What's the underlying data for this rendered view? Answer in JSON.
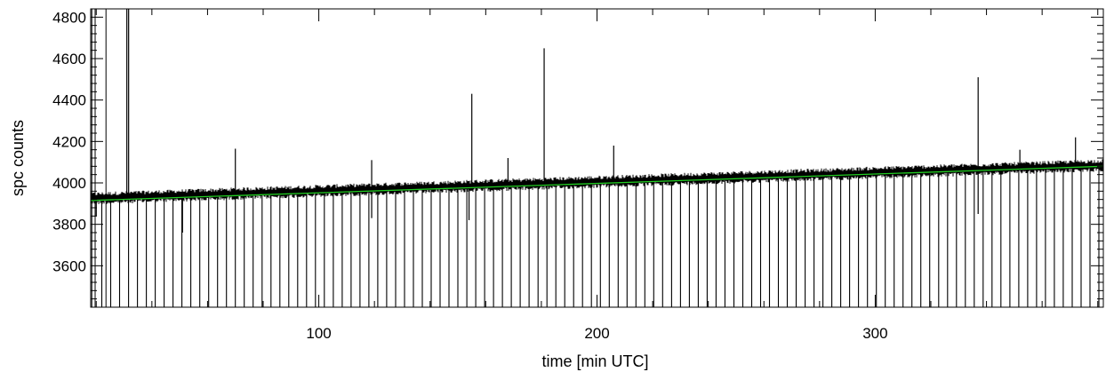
{
  "chart_data": {
    "type": "line",
    "title": "",
    "xlabel": "time [min UTC]",
    "ylabel": "spc counts",
    "xlim": [
      18,
      382
    ],
    "ylim": [
      3400,
      4840
    ],
    "xticks": [
      100,
      200,
      300
    ],
    "xtick_labels": [
      "100",
      "200",
      "300"
    ],
    "yticks": [
      3600,
      3800,
      4000,
      4200,
      4400,
      4600,
      4800
    ],
    "ytick_labels": [
      "3600",
      "3800",
      "4000",
      "4200",
      "4400",
      "4600",
      "4800"
    ],
    "grid": false,
    "legend": "none",
    "series": [
      {
        "style": "noisy-trace",
        "color": "#000000",
        "baseline_start": [
          18,
          3925
        ],
        "baseline_end": [
          382,
          4085
        ],
        "noise_amplitude": 20,
        "dropouts": {
          "first_x": 22,
          "spacing_min": 3.2,
          "depth_y": 3400,
          "description": "regular periodic dips to the bottom of the plot"
        },
        "spikes": [
          {
            "x": 31,
            "y": 4840
          },
          {
            "x": 70,
            "y": 4165
          },
          {
            "x": 119,
            "y": 4110
          },
          {
            "x": 155,
            "y": 4430
          },
          {
            "x": 168,
            "y": 4120
          },
          {
            "x": 181,
            "y": 4650
          },
          {
            "x": 206,
            "y": 4180
          },
          {
            "x": 337,
            "y": 4510
          },
          {
            "x": 352,
            "y": 4160
          },
          {
            "x": 372,
            "y": 4220
          }
        ],
        "downward_outliers": [
          {
            "x": 20,
            "y": 3840
          },
          {
            "x": 51,
            "y": 3760
          },
          {
            "x": 119,
            "y": 3830
          },
          {
            "x": 154,
            "y": 3820
          },
          {
            "x": 337,
            "y": 3850
          }
        ]
      },
      {
        "style": "fit-line",
        "color": "#22cc22",
        "x": [
          18,
          382
        ],
        "y": [
          3915,
          4080
        ]
      }
    ]
  }
}
